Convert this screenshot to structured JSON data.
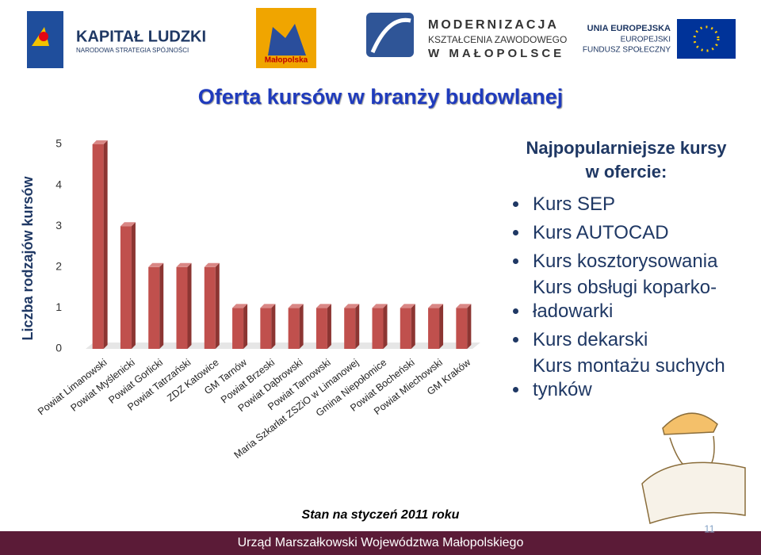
{
  "header": {
    "logos": [
      {
        "title": "KAPITAŁ LUDZKI",
        "subtitle": "NARODOWA STRATEGIA SPÓJNOŚCI"
      },
      {
        "title": "Małopolska"
      },
      {
        "lines": [
          "MODERNIZACJA",
          "KSZTAŁCENIA ZAWODOWEGO",
          "W MAŁOPOLSCE"
        ]
      },
      {
        "lines": [
          "UNIA EUROPEJSKA",
          "EUROPEJSKI",
          "FUNDUSZ SPOŁECZNY"
        ]
      }
    ]
  },
  "title": "Oferta kursów w branży budowlanej",
  "chart_data": {
    "type": "bar",
    "y_label": "Liczba rodzajów kursów",
    "categories": [
      "Powiat Limanowski",
      "Powiat Myślenicki",
      "Powiat Gorlicki",
      "Powiat Tatrzański",
      "ZDZ Katowice",
      "GM Tarnów",
      "Powiat Brzeski",
      "Powiat Dąbrowski",
      "Powiat Tarnowski",
      "Maria Szkarłat ZSZiO w Limanowej",
      "Gmina Niepołomice",
      "Powiat Bocheński",
      "Powiat Miechowski",
      "GM Kraków"
    ],
    "values": [
      5,
      3,
      2,
      2,
      2,
      1,
      1,
      1,
      1,
      1,
      1,
      1,
      1,
      1
    ],
    "color": "#c0504d",
    "ylim": [
      0,
      5
    ],
    "yticks": [
      0,
      1,
      2,
      3,
      4,
      5
    ],
    "grid": false
  },
  "panel": {
    "heading": [
      "Najpopularniejsze kursy",
      "w ofercie:"
    ],
    "items": [
      "Kurs SEP",
      "Kurs AUTOCAD",
      "Kurs kosztorysowania",
      "Kurs obsługi koparko-ładowarki",
      "Kurs dekarski",
      "Kurs montażu suchych tynków"
    ]
  },
  "note": "Stan na styczeń 2011 roku",
  "footer": {
    "text": "Urząd Marszałkowski Województwa Małopolskiego",
    "page": 11
  }
}
